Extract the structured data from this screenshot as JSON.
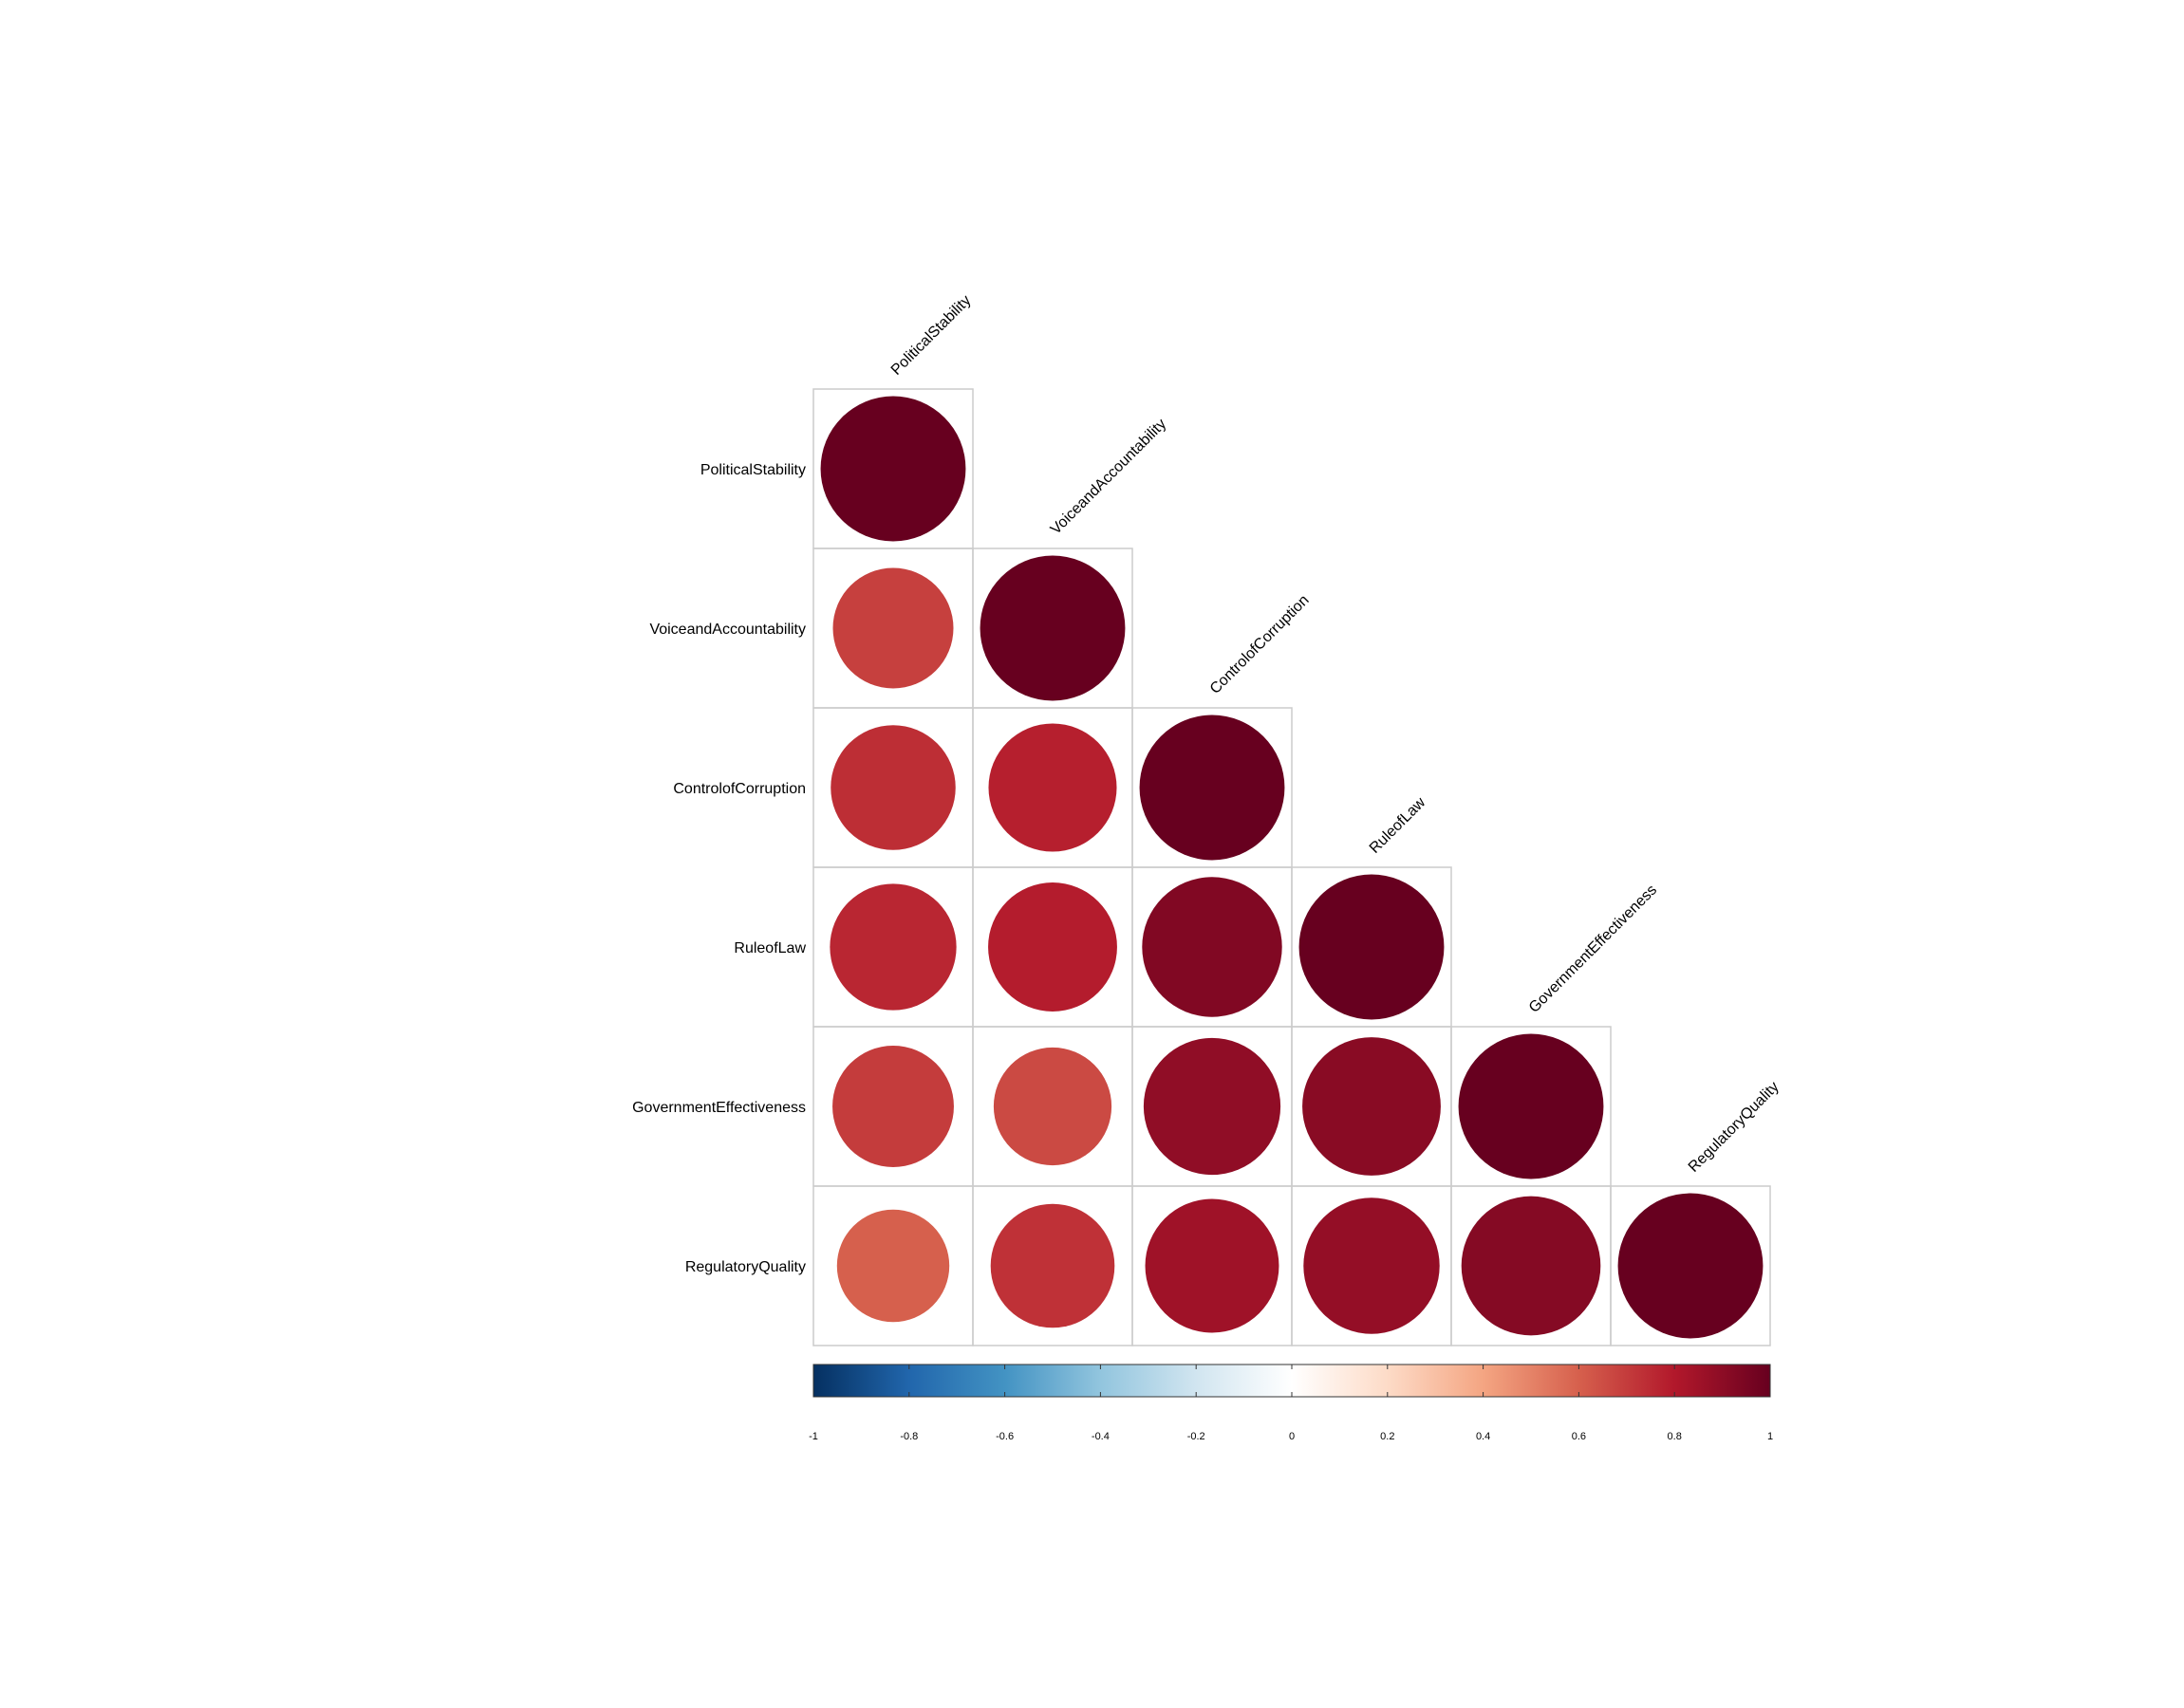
{
  "chart_data": {
    "type": "heatmap",
    "title": "",
    "variables": [
      "PoliticalStability",
      "VoiceandAccountability",
      "ControlofCorruption",
      "RuleofLaw",
      "GovernmentEffectiveness",
      "RegulatoryQuality"
    ],
    "matrix": [
      [
        1.0,
        null,
        null,
        null,
        null,
        null
      ],
      [
        0.69,
        1.0,
        null,
        null,
        null,
        null
      ],
      [
        0.74,
        0.78,
        1.0,
        null,
        null,
        null
      ],
      [
        0.76,
        0.79,
        0.93,
        1.0,
        null,
        null
      ],
      [
        0.7,
        0.66,
        0.89,
        0.91,
        1.0,
        null
      ],
      [
        0.6,
        0.73,
        0.85,
        0.88,
        0.92,
        1.0
      ]
    ],
    "shape": "circle",
    "layout": "lower-triangle",
    "colorbar": {
      "ticks": [
        "-1",
        "-0.8",
        "-0.6",
        "-0.4",
        "-0.2",
        "0",
        "0.2",
        "0.4",
        "0.6",
        "0.8",
        "1"
      ],
      "range": [
        -1,
        1
      ],
      "colors": [
        "#053061",
        "#2166AC",
        "#4393C3",
        "#92C5DE",
        "#D1E5F0",
        "#FFFFFF",
        "#FDDBC7",
        "#F4A582",
        "#D6604D",
        "#B2182B",
        "#67001F"
      ]
    },
    "grid_color": "#CCCCCC"
  }
}
